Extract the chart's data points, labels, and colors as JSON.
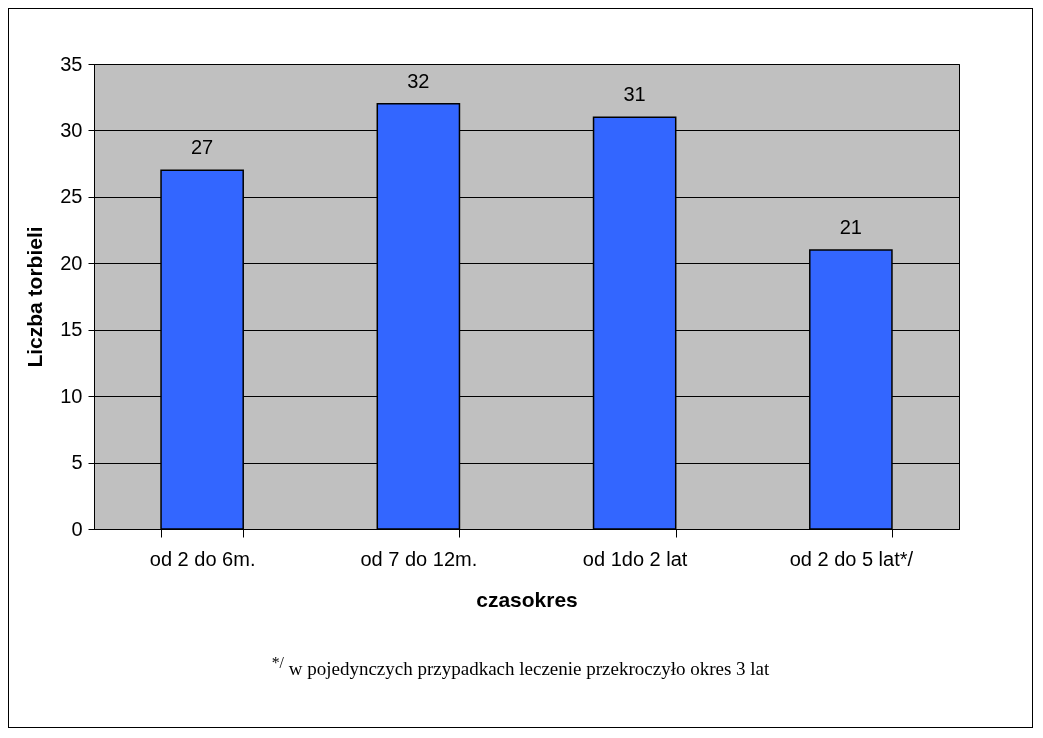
{
  "chart_data": {
    "type": "bar",
    "xlabel": "czasokres",
    "ylabel": "Liczba torbieli",
    "categories": [
      "od 2 do 6m.",
      "od 7 do 12m.",
      "od 1do 2 lat",
      "od 2  do 5 lat*/"
    ],
    "values": [
      27,
      32,
      31,
      21
    ],
    "color": "#3366ff",
    "ylim": [
      0,
      35
    ],
    "yticks": [
      0,
      5,
      10,
      15,
      20,
      25,
      30,
      35
    ],
    "grid": "y",
    "data_labels": true,
    "annotations": [
      "$^{*/}$ w pojedynczych przypadkach leczenie przekroczyło okres 3 lat"
    ]
  }
}
